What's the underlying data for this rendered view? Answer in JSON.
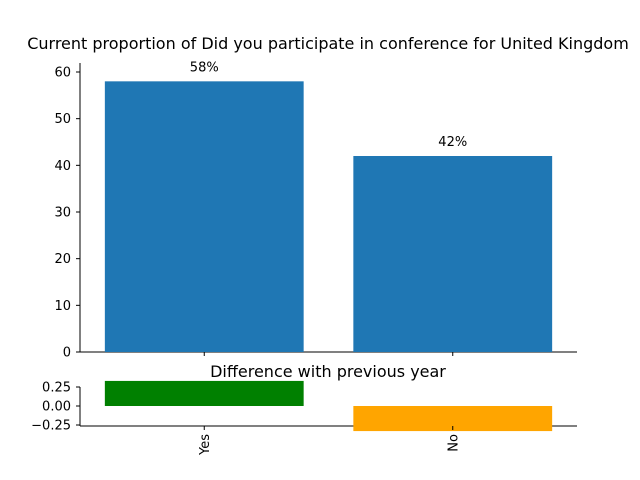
{
  "chart_data": [
    {
      "type": "bar",
      "title": "Current proportion of Did you participate in conference for United Kingdom",
      "categories": [
        "Yes",
        "No"
      ],
      "values": [
        58,
        42
      ],
      "data_labels": [
        "58%",
        "42%"
      ],
      "ylim": [
        0,
        60
      ],
      "yticks": [
        "0",
        "10",
        "20",
        "30",
        "40",
        "50",
        "60"
      ],
      "colors": [
        "#1f77b4",
        "#1f77b4"
      ],
      "grid": false
    },
    {
      "type": "bar",
      "title": "Difference with previous year",
      "categories": [
        "Yes",
        "No"
      ],
      "values": [
        0.33,
        -0.33
      ],
      "yticks": [
        "0.25",
        "0.00",
        "−0.25"
      ],
      "colors": [
        "#008000",
        "#ffa500"
      ],
      "grid": false
    }
  ]
}
